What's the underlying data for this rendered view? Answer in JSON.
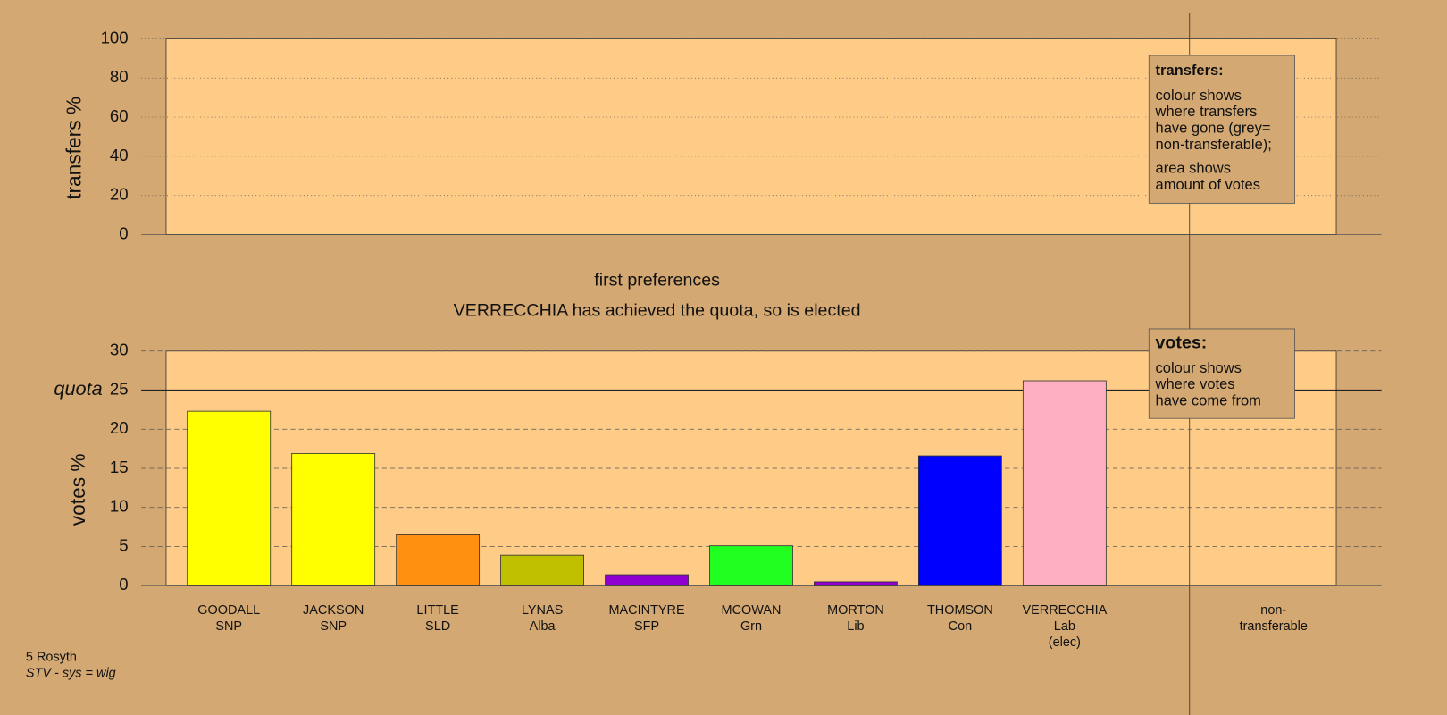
{
  "chart_data": [
    {
      "type": "bar",
      "ylabel": "transfers %",
      "ylim": [
        0,
        100
      ],
      "yticks": [
        0,
        20,
        40,
        60,
        80,
        100
      ],
      "grid": true,
      "annotation": {
        "heading": "transfers:",
        "lines": [
          "colour shows",
          "where transfers",
          "have gone (grey=",
          "non-transferable);",
          "area shows",
          "amount of votes"
        ]
      }
    },
    {
      "type": "bar",
      "title": "first preferences",
      "subtitle": "VERRECCHIA has achieved the quota, so is elected",
      "ylabel": "votes %",
      "categories": [
        [
          "GOODALL",
          "SNP"
        ],
        [
          "JACKSON",
          "SNP"
        ],
        [
          "LITTLE",
          "SLD"
        ],
        [
          "LYNAS",
          "Alba"
        ],
        [
          "MACINTYRE",
          "SFP"
        ],
        [
          "MCOWAN",
          "Grn"
        ],
        [
          "MORTON",
          "Lib"
        ],
        [
          "THOMSON",
          "Con"
        ],
        [
          "VERRECCHIA",
          "Lab",
          "(elec)"
        ],
        [
          "non-",
          "transferable"
        ]
      ],
      "values": [
        22.3,
        16.9,
        6.5,
        3.9,
        1.4,
        5.1,
        0.5,
        16.6,
        26.2,
        0
      ],
      "colors": [
        "#ffff00",
        "#ffff00",
        "#ff9010",
        "#c0c000",
        "#9000d0",
        "#20ff20",
        "#9000d0",
        "#0000ff",
        "#ffb0c0",
        "#999999"
      ],
      "ylim": [
        0,
        30
      ],
      "yticks": [
        0,
        5,
        10,
        15,
        20,
        25,
        30
      ],
      "grid": true,
      "quota": {
        "label": "quota",
        "value": 25
      },
      "annotation": {
        "heading": "votes:",
        "lines": [
          "colour shows",
          "where votes",
          "have come from"
        ]
      }
    }
  ],
  "footer": {
    "place": "5 Rosyth",
    "system": "STV - sys = wig"
  }
}
